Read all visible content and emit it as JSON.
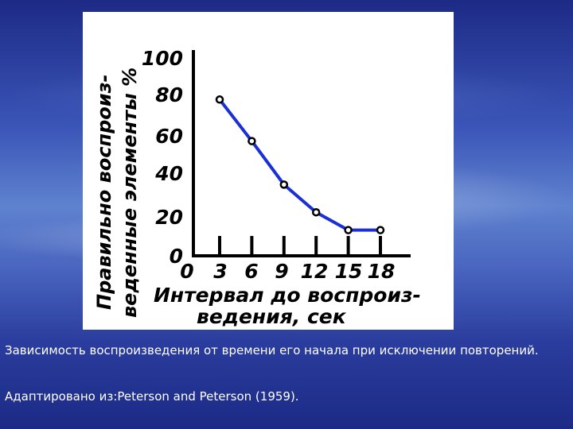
{
  "chart_data": {
    "type": "line",
    "x": [
      3,
      6,
      9,
      12,
      15,
      18
    ],
    "values": [
      79,
      58,
      36,
      22,
      13,
      13
    ],
    "xticks": [
      "0",
      "3",
      "6",
      "9",
      "12",
      "15",
      "18"
    ],
    "yticks": [
      "0",
      "20",
      "40",
      "60",
      "80",
      "100"
    ],
    "xlim": [
      0,
      18
    ],
    "ylim": [
      0,
      100
    ],
    "ylabel_line1": "Правильно воспроиз-",
    "ylabel_line2": "веденные элементы %",
    "xlabel_line1": "Интервал до воспроиз-",
    "xlabel_line2": "ведения, сек",
    "grid": false,
    "colors": {
      "line": "#1a2fd6",
      "markers": "#000000",
      "axes": "#000000",
      "text": "#000000"
    }
  },
  "captions": {
    "line1": "Зависимость воспроизведения от времени его начала при исключении повторений.",
    "line2": "Адаптировано из:Peterson and Peterson (1959)."
  }
}
